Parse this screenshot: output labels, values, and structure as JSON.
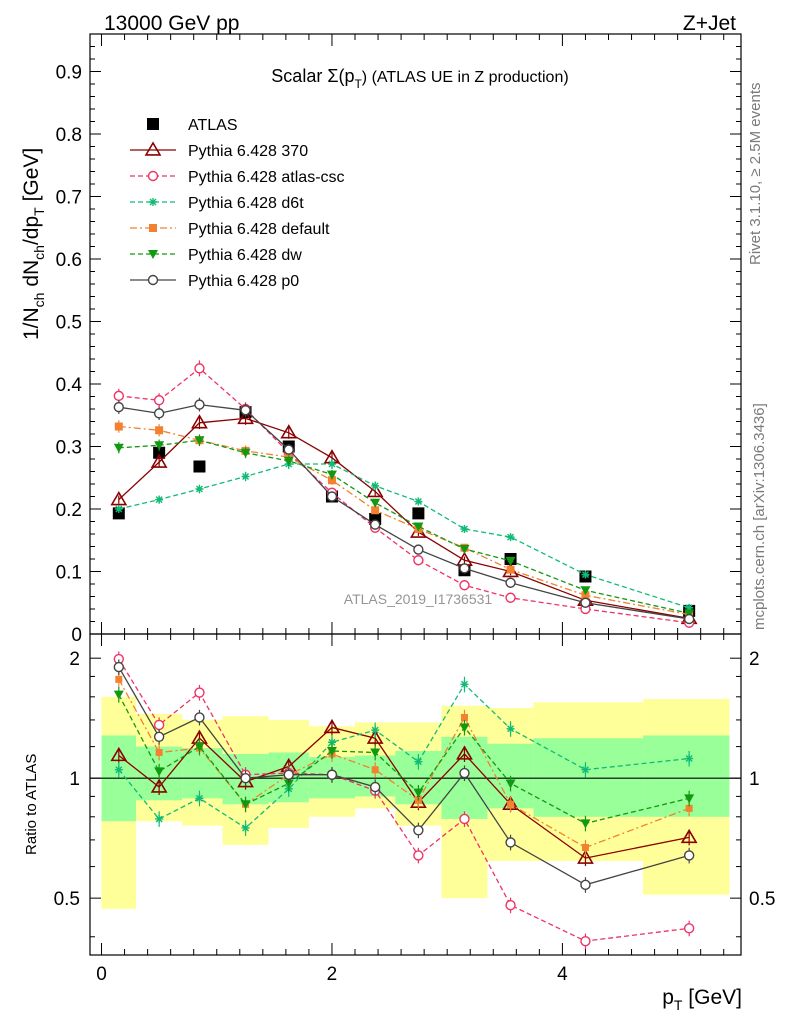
{
  "header": {
    "left": "13000 GeV pp",
    "right": "Z+Jet"
  },
  "side_labels": {
    "rivet": "Rivet 3.1.10, ≥ 2.5M events",
    "mcplots": "mcplots.cern.ch [arXiv:1306.3436]"
  },
  "watermark": "ATLAS_2019_I1736531",
  "title": {
    "prefix": "Scalar Σ(p",
    "sub": "T",
    "suffix": ") (ATLAS UE in Z production)"
  },
  "axes": {
    "ylabel_main": "1/N_ch dN_ch/dp_T [GeV]",
    "ylabel_ratio": "Ratio to ATLAS",
    "xlabel": "p_T [GeV]"
  },
  "chart_data": [
    {
      "type": "scatter",
      "panel": "main",
      "xlim": [
        -0.1,
        5.55
      ],
      "ylim": [
        0,
        0.96
      ],
      "yticks": [
        "0",
        "0.1",
        "0.2",
        "0.3",
        "0.4",
        "0.5",
        "0.6",
        "0.7",
        "0.8",
        "0.9"
      ],
      "x": [
        0.15,
        0.5,
        0.85,
        1.25,
        1.625,
        2.0,
        2.375,
        2.75,
        3.15,
        3.55,
        4.2,
        5.1
      ],
      "series": [
        {
          "name": "ATLAS",
          "marker": "square-filled",
          "dash": "none",
          "color": "#000000",
          "values": [
            0.193,
            0.29,
            0.268,
            0.355,
            0.3,
            0.22,
            0.184,
            0.193,
            0.102,
            0.12,
            0.092,
            0.037
          ]
        },
        {
          "name": "Pythia 6.428 370",
          "marker": "triangle-open",
          "dash": "solid",
          "color": "#8b0000",
          "values": [
            0.215,
            0.275,
            0.338,
            0.345,
            0.322,
            0.282,
            0.228,
            0.163,
            0.118,
            0.1,
            0.054,
            0.025
          ]
        },
        {
          "name": "Pythia 6.428 atlas-csc",
          "marker": "circle-open",
          "dash": "dashed",
          "color": "#ee3366",
          "values": [
            0.381,
            0.374,
            0.425,
            0.36,
            0.29,
            0.226,
            0.17,
            0.118,
            0.078,
            0.058,
            0.04,
            0.018
          ]
        },
        {
          "name": "Pythia 6.428 d6t",
          "marker": "star",
          "dash": "dashed",
          "color": "#11bb77",
          "values": [
            0.2,
            0.215,
            0.232,
            0.252,
            0.272,
            0.272,
            0.237,
            0.212,
            0.168,
            0.155,
            0.095,
            0.042
          ]
        },
        {
          "name": "Pythia 6.428 default",
          "marker": "square-filled",
          "dash": "dashdot",
          "color": "#f28230",
          "values": [
            0.332,
            0.326,
            0.31,
            0.293,
            0.283,
            0.246,
            0.198,
            0.168,
            0.138,
            0.103,
            0.062,
            0.031
          ]
        },
        {
          "name": "Pythia 6.428 dw",
          "marker": "triangle-down-filled",
          "dash": "dashed",
          "color": "#119911",
          "values": [
            0.298,
            0.302,
            0.31,
            0.29,
            0.277,
            0.255,
            0.21,
            0.172,
            0.136,
            0.117,
            0.07,
            0.033
          ]
        },
        {
          "name": "Pythia 6.428 p0",
          "marker": "circle-open",
          "dash": "solid",
          "color": "#444444",
          "values": [
            0.363,
            0.353,
            0.367,
            0.358,
            0.295,
            0.22,
            0.175,
            0.135,
            0.105,
            0.082,
            0.05,
            0.024
          ]
        }
      ]
    },
    {
      "type": "scatter",
      "panel": "ratio",
      "reference": "ATLAS",
      "xlim": [
        -0.1,
        5.55
      ],
      "ylim": [
        0.36,
        2.3
      ],
      "scale": "log",
      "yticks": [
        "0.5",
        "1",
        "2"
      ],
      "xticks": [
        "0",
        "2",
        "4"
      ],
      "x": [
        0.15,
        0.5,
        0.85,
        1.25,
        1.625,
        2.0,
        2.375,
        2.75,
        3.15,
        3.55,
        4.2,
        5.1
      ],
      "bands": {
        "edges": [
          0,
          0.3,
          0.7,
          1.05,
          1.45,
          1.8,
          2.2,
          2.55,
          2.95,
          3.35,
          3.75,
          4.7,
          5.45
        ],
        "inner": [
          [
            0.78,
            1.28
          ],
          [
            0.88,
            1.2
          ],
          [
            0.89,
            1.19
          ],
          [
            0.86,
            1.15
          ],
          [
            0.87,
            1.16
          ],
          [
            0.89,
            1.13
          ],
          [
            0.9,
            1.14
          ],
          [
            0.86,
            1.17
          ],
          [
            0.79,
            1.27
          ],
          [
            0.84,
            1.22
          ],
          [
            0.8,
            1.26
          ],
          [
            0.8,
            1.28
          ]
        ],
        "outer": [
          [
            0.47,
            1.6
          ],
          [
            0.78,
            1.45
          ],
          [
            0.76,
            1.4
          ],
          [
            0.68,
            1.43
          ],
          [
            0.75,
            1.4
          ],
          [
            0.8,
            1.35
          ],
          [
            0.84,
            1.38
          ],
          [
            0.76,
            1.38
          ],
          [
            0.5,
            1.52
          ],
          [
            0.62,
            1.5
          ],
          [
            0.62,
            1.55
          ],
          [
            0.51,
            1.58
          ]
        ]
      },
      "series": [
        {
          "name": "Pythia 6.428 370",
          "color": "#8b0000",
          "values": [
            1.14,
            0.95,
            1.26,
            0.98,
            1.07,
            1.34,
            1.26,
            0.87,
            1.15,
            0.86,
            0.63,
            0.71
          ]
        },
        {
          "name": "Pythia 6.428 atlas-csc",
          "color": "#ee3366",
          "values": [
            1.99,
            1.36,
            1.64,
            1.02,
            1.03,
            1.02,
            0.93,
            0.64,
            0.79,
            0.48,
            0.39,
            0.42
          ]
        },
        {
          "name": "Pythia 6.428 d6t",
          "color": "#11bb77",
          "values": [
            1.05,
            0.79,
            0.89,
            0.75,
            0.94,
            1.23,
            1.32,
            1.1,
            1.72,
            1.33,
            1.05,
            1.12
          ]
        },
        {
          "name": "Pythia 6.428 default",
          "color": "#f28230",
          "values": [
            1.77,
            1.16,
            1.19,
            0.86,
            1.02,
            1.15,
            1.05,
            0.88,
            1.42,
            0.86,
            0.67,
            0.84
          ]
        },
        {
          "name": "Pythia 6.428 dw",
          "color": "#119911",
          "values": [
            1.62,
            1.04,
            1.2,
            0.86,
            0.97,
            1.17,
            1.16,
            0.92,
            1.34,
            0.97,
            0.77,
            0.89
          ]
        },
        {
          "name": "Pythia 6.428 p0",
          "color": "#444444",
          "values": [
            1.9,
            1.27,
            1.42,
            1.0,
            1.02,
            1.02,
            0.95,
            0.74,
            1.03,
            0.69,
            0.54,
            0.64
          ]
        }
      ]
    }
  ]
}
